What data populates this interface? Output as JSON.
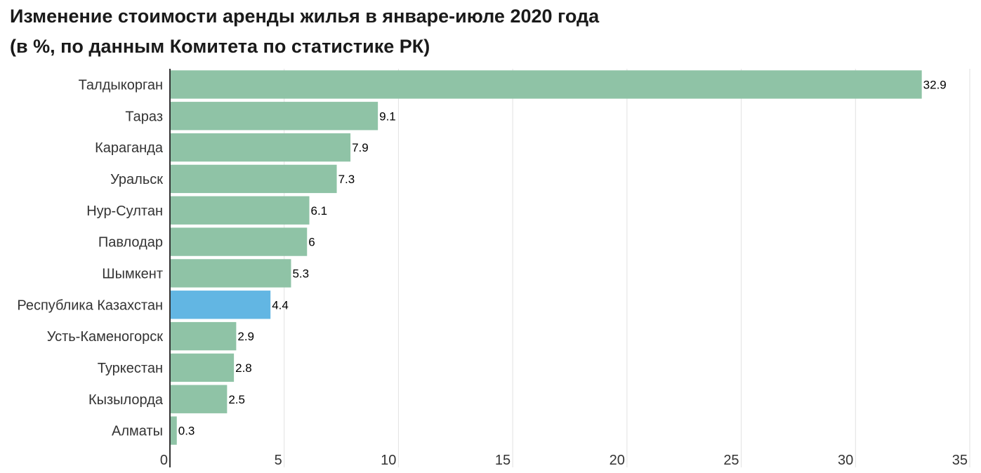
{
  "chart_data": {
    "type": "bar",
    "orientation": "horizontal",
    "title": "Изменение стоимости аренды жилья в январе-июле 2020 года",
    "subtitle": "(в %, по данным Комитета по статистике РК)",
    "xlabel": "",
    "ylabel": "",
    "categories": [
      "Талдыкорган",
      "Тараз",
      "Караганда",
      "Уральск",
      "Нур-Султан",
      "Павлодар",
      "Шымкент",
      "Республика Казахстан",
      "Усть-Каменогорск",
      "Туркестан",
      "Кызылорда",
      "Алматы"
    ],
    "values": [
      32.9,
      9.1,
      7.9,
      7.3,
      6.1,
      6,
      5.3,
      4.4,
      2.9,
      2.8,
      2.5,
      0.3
    ],
    "value_labels": [
      "32.9",
      "9.1",
      "7.9",
      "7.3",
      "6.1",
      "6",
      "5.3",
      "4.4",
      "2.9",
      "2.8",
      "2.5",
      "0.3"
    ],
    "highlight_category": "Республика Казахстан",
    "xlim": [
      0,
      35
    ],
    "x_ticks": [
      0,
      5,
      10,
      15,
      20,
      25,
      30,
      35
    ],
    "x_tick_labels": [
      "0",
      "5",
      "10",
      "15",
      "20",
      "25",
      "30",
      "35"
    ],
    "grid": true,
    "legend": "none",
    "colors": {
      "bar": "#8fc3a6",
      "highlight": "#62b6e3"
    }
  }
}
